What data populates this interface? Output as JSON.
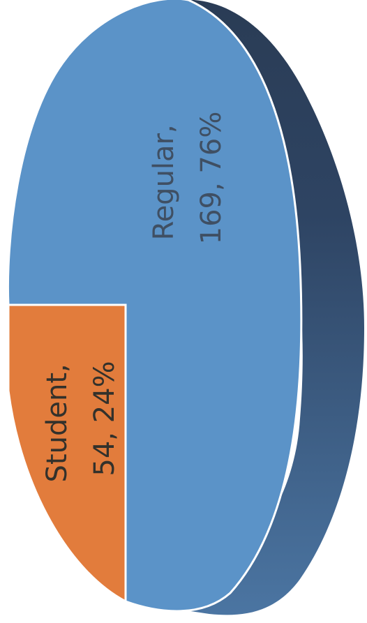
{
  "chart_data": {
    "type": "pie",
    "style": "3d",
    "slices": [
      {
        "name": "Regular",
        "value": 169,
        "percent": 76,
        "label_line1": "Regular,",
        "label_line2": "169, 76%",
        "color": "#5b93c8",
        "label_color": "#3f4f63"
      },
      {
        "name": "Student",
        "value": 54,
        "percent": 24,
        "label_line1": "Student,",
        "label_line2": "54, 24%",
        "color": "#e27c3c",
        "label_color": "#33312b"
      }
    ],
    "depth_colors": [
      "#2a3c55",
      "#4b75a2"
    ]
  }
}
